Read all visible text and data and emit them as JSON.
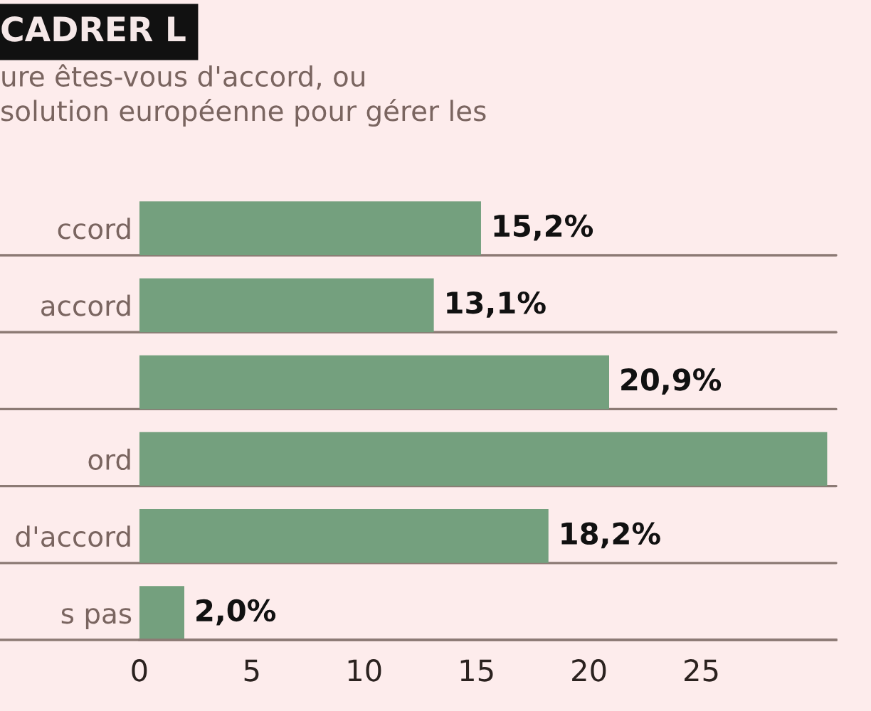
{
  "chart_data": {
    "type": "bar",
    "orientation": "horizontal",
    "title": "CADRER L",
    "subtitle": "ure êtes-vous d'accord, ou\nsolution européenne pour gérer les",
    "categories": [
      "ccord",
      "accord",
      null,
      "ord",
      "d'accord",
      "s pas"
    ],
    "values": [
      15.2,
      13.1,
      20.9,
      30.6,
      18.2,
      2.0
    ],
    "color": "#74a07e",
    "value_labels": [
      "15,2%",
      "13,1%",
      "20,9%",
      null,
      "18,2%",
      "2,0%"
    ],
    "xlim": [
      0,
      31
    ],
    "xticks": [
      0,
      5,
      10,
      15,
      20,
      25
    ],
    "grid": "y"
  }
}
